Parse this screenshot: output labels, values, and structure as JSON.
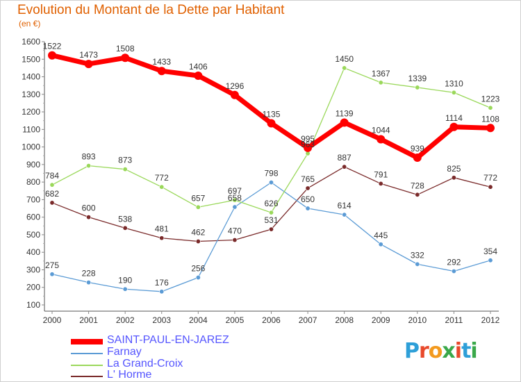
{
  "header": {
    "title": "Evolution du Montant de la Dette par Habitant",
    "subtitle": "(en €)"
  },
  "logo": {
    "text": "Proxiti",
    "letter_colors": [
      "#2e9fd8",
      "#e8492b",
      "#f39a1e",
      "#3aa84a",
      "#e8492b",
      "#2e9fd8",
      "#3aa84a"
    ]
  },
  "chart_data": {
    "type": "line",
    "x": [
      2000,
      2001,
      2002,
      2003,
      2004,
      2005,
      2006,
      2007,
      2008,
      2009,
      2010,
      2011,
      2012
    ],
    "ylim": [
      100,
      1600
    ],
    "yticks": [
      100,
      200,
      300,
      400,
      500,
      600,
      700,
      800,
      900,
      1000,
      1100,
      1200,
      1300,
      1400,
      1500,
      1600
    ],
    "grid": false,
    "legend": "bottom-left",
    "series": [
      {
        "name": "SAINT-PAUL-EN-JAREZ",
        "color": "#ff0000",
        "values": [
          1522,
          1473,
          1508,
          1433,
          1406,
          1296,
          1135,
          995,
          1139,
          1044,
          939,
          1114,
          1108
        ]
      },
      {
        "name": "Farnay",
        "color": "#5b9bd5",
        "values": [
          275,
          228,
          190,
          176,
          256,
          658,
          798,
          650,
          614,
          445,
          332,
          292,
          354
        ]
      },
      {
        "name": "La Grand-Croix",
        "color": "#9ad85a",
        "values": [
          784,
          893,
          873,
          772,
          657,
          697,
          626,
          963,
          1450,
          1367,
          1339,
          1310,
          1223
        ]
      },
      {
        "name": "L' Horme",
        "color": "#7a2a2a",
        "values": [
          682,
          600,
          538,
          481,
          462,
          470,
          531,
          765,
          887,
          791,
          728,
          825,
          772
        ]
      }
    ]
  }
}
